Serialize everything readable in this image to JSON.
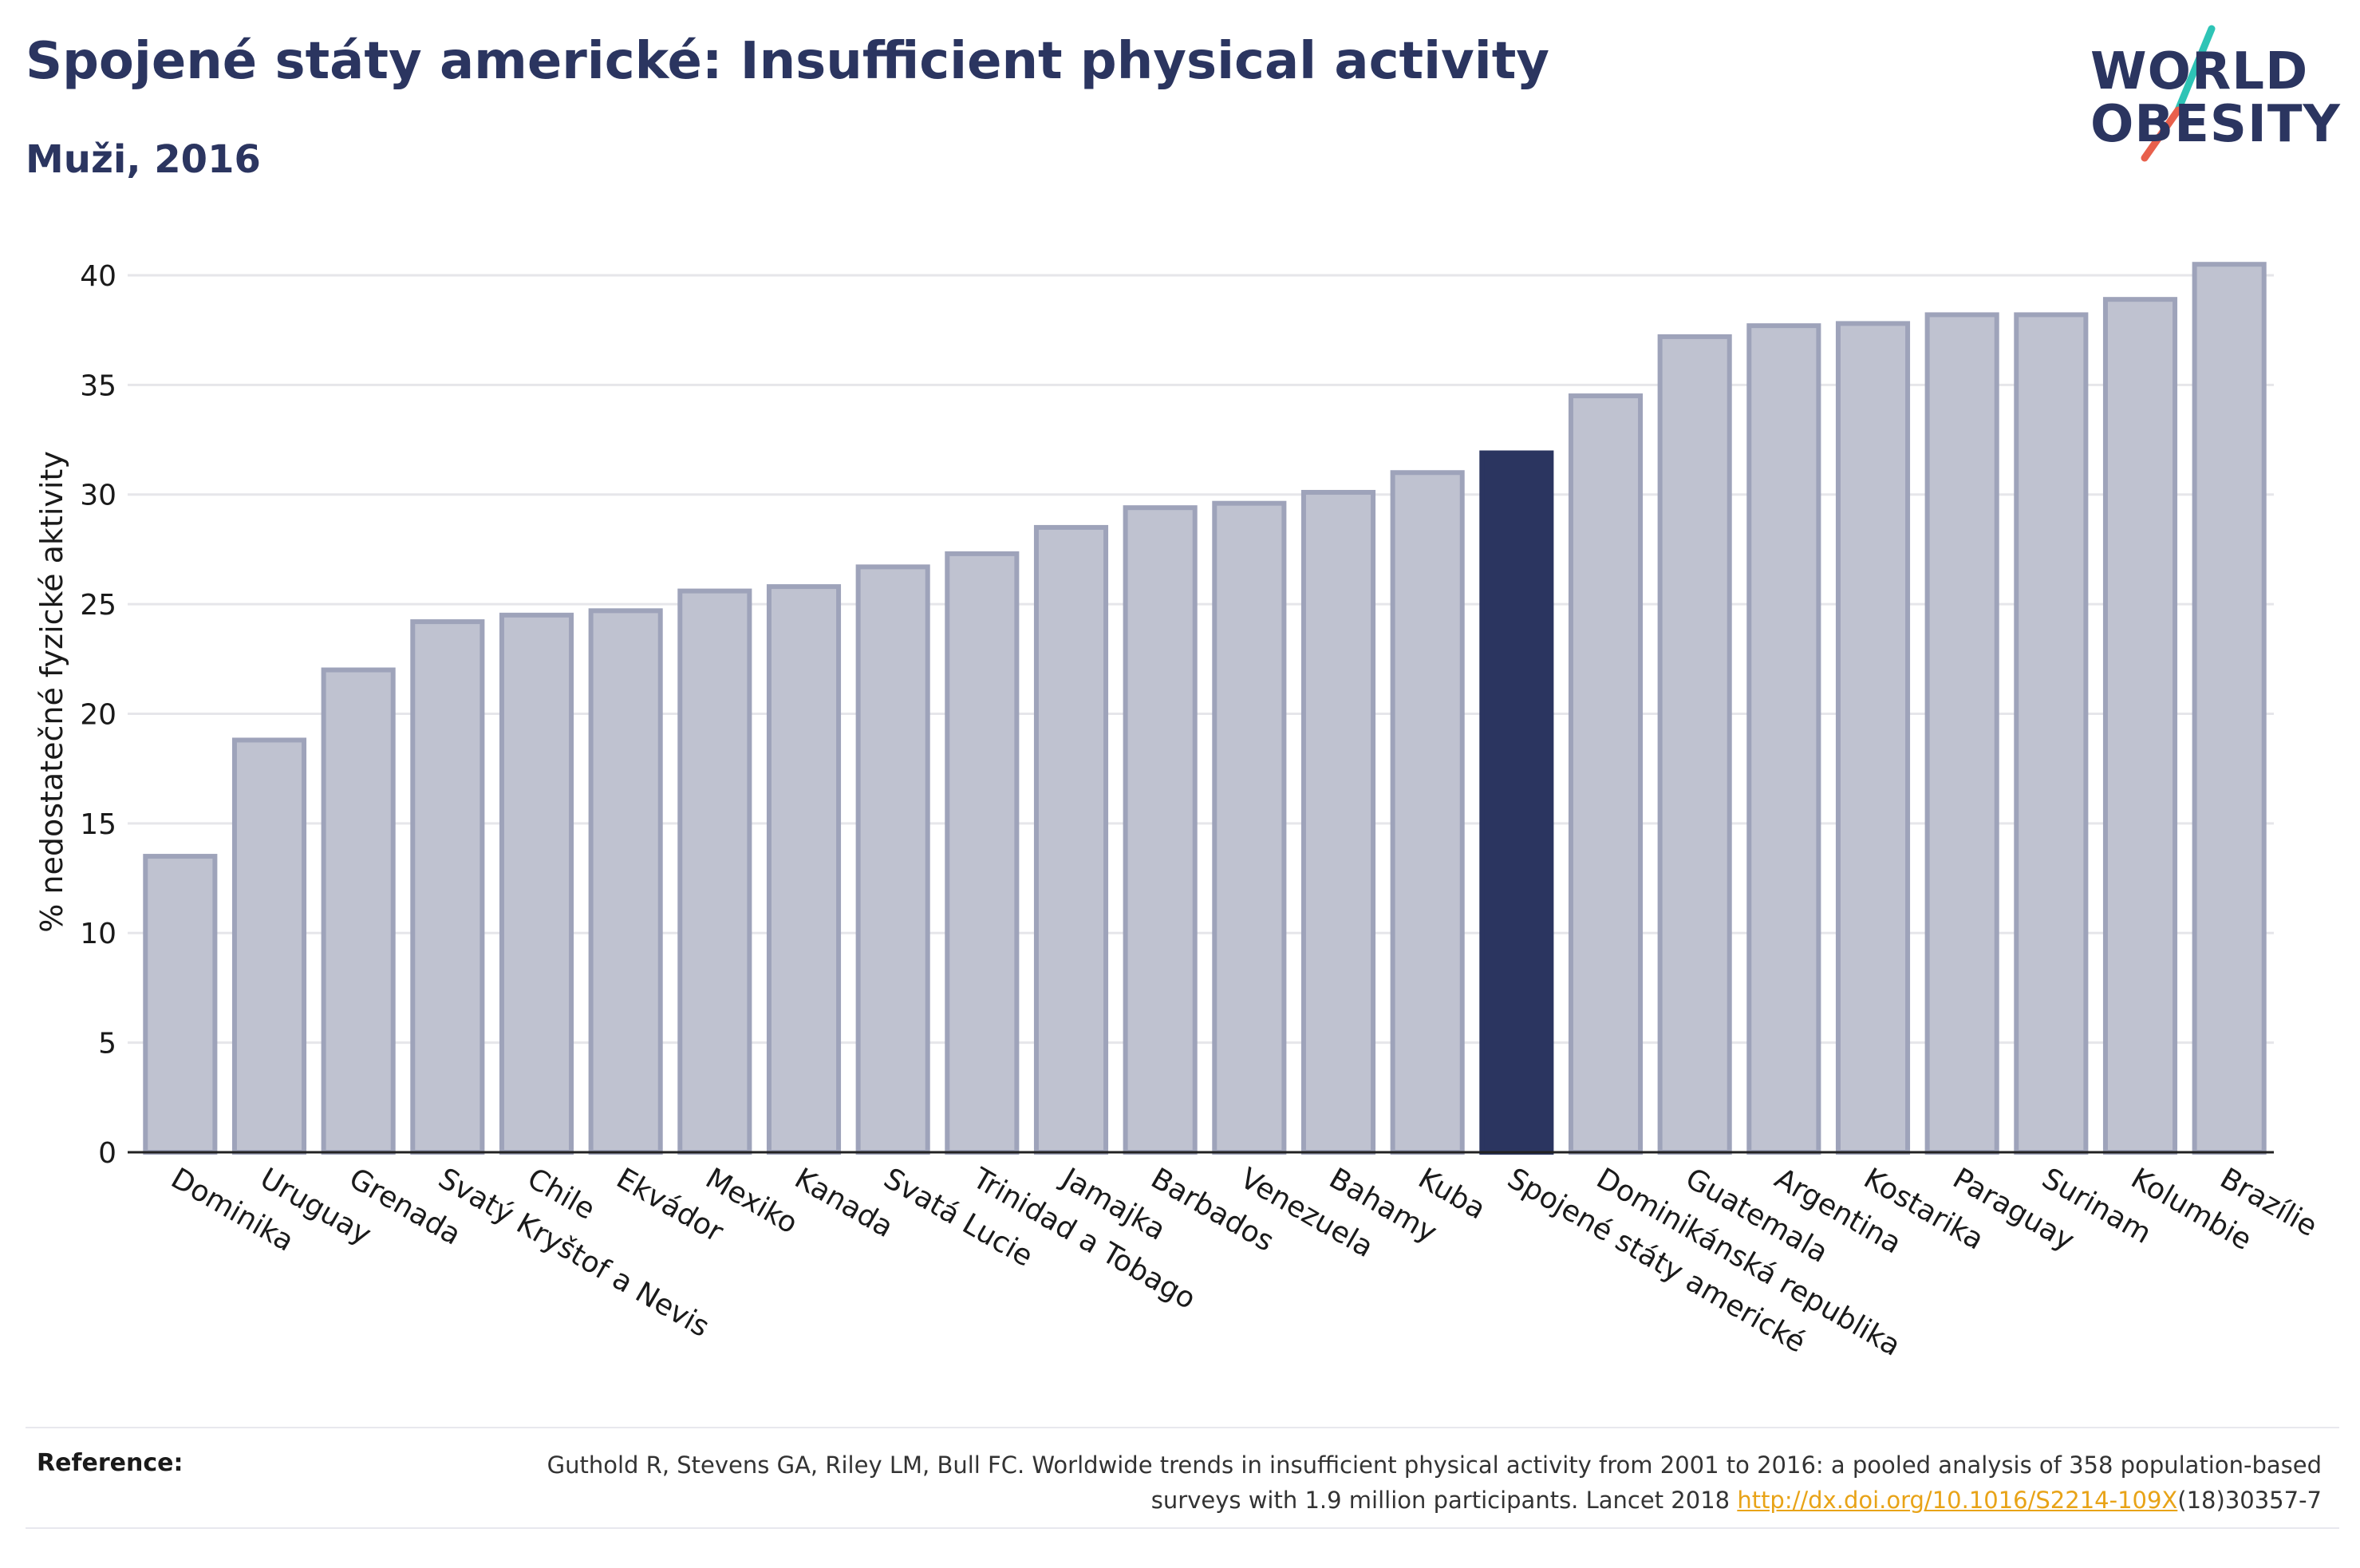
{
  "header": {
    "title": "Spojené státy americké: Insufficient physical activity",
    "subtitle": "Muži, 2016"
  },
  "logo": {
    "line1": "WORLD",
    "line2": "OBESITY",
    "slash_colors": [
      "#2ec4b6",
      "#e8604c"
    ]
  },
  "colors": {
    "bar_fill": "#bfc2d0",
    "bar_stroke": "#9ea3ba",
    "highlight": "#2b3560",
    "grid": "#e6e6ea",
    "axis": "#222222"
  },
  "chart_data": {
    "type": "bar",
    "title": "Spojené státy americké: Insufficient physical activity",
    "subtitle": "Muži, 2016",
    "xlabel": "",
    "ylabel": "% nedostatečné fyzické aktivity",
    "ylim": [
      0,
      42
    ],
    "yticks": [
      0,
      5,
      10,
      15,
      20,
      25,
      30,
      35,
      40
    ],
    "grid": true,
    "highlight": "Spojené státy americké",
    "categories": [
      "Dominika",
      "Uruguay",
      "Grenada",
      "Svatý Kryštof a Nevis",
      "Chile",
      "Ekvádor",
      "Mexiko",
      "Kanada",
      "Svatá Lucie",
      "Trinidad a Tobago",
      "Jamajka",
      "Barbados",
      "Venezuela",
      "Bahamy",
      "Kuba",
      "Spojené státy americké",
      "Dominikánská republika",
      "Guatemala",
      "Argentina",
      "Kostarika",
      "Paraguay",
      "Surinam",
      "Kolumbie",
      "Brazílie"
    ],
    "values": [
      13.5,
      18.8,
      22.0,
      24.2,
      24.5,
      24.7,
      25.6,
      25.8,
      26.7,
      27.3,
      28.5,
      29.4,
      29.6,
      30.1,
      31.0,
      31.9,
      34.5,
      37.2,
      37.7,
      37.8,
      38.2,
      38.2,
      38.9,
      40.5
    ]
  },
  "reference": {
    "label": "Reference:",
    "text": "Guthold R, Stevens GA, Riley LM, Bull FC. Worldwide trends in insufficient physical activity from 2001 to 2016: a pooled analysis of 358 population-based surveys with 1.9 million participants. Lancet 2018 ",
    "link": "http://dx.doi.org/10.1016/S2214-109X",
    "suffix": "(18)30357-7"
  }
}
